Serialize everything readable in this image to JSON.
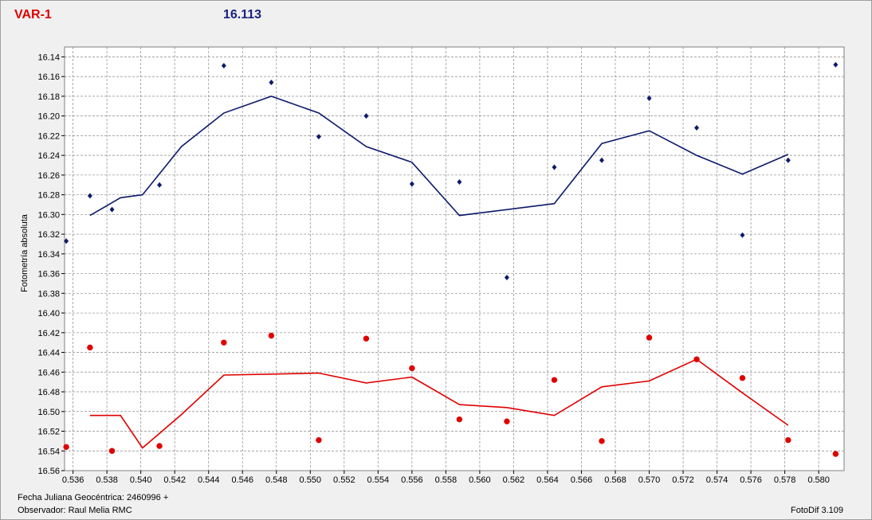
{
  "header": {
    "variable": "VAR-1",
    "magnitude": "16.113"
  },
  "footer": {
    "jd_label": "Fecha Juliana Geocéntrica: 2460996 +",
    "observer": "Observador: Raul Melia RMC",
    "software": "FotoDif 3.109"
  },
  "colors": {
    "blue_series": "#0d1a6b",
    "red_series": "#e00000",
    "grid": "#888888",
    "plot_bg": "#ffffff"
  },
  "chart_data": {
    "type": "scatter",
    "ylabel": "Fotometría absoluta",
    "xlim": [
      0.5355,
      0.5815
    ],
    "ylim": [
      16.13,
      16.56
    ],
    "y_inverted": true,
    "grid": true,
    "x_ticks": [
      0.536,
      0.538,
      0.54,
      0.542,
      0.544,
      0.546,
      0.548,
      0.55,
      0.552,
      0.554,
      0.556,
      0.558,
      0.56,
      0.562,
      0.564,
      0.566,
      0.568,
      0.57,
      0.572,
      0.574,
      0.576,
      0.578,
      0.58
    ],
    "y_ticks": [
      16.14,
      16.16,
      16.18,
      16.2,
      16.22,
      16.24,
      16.26,
      16.28,
      16.3,
      16.32,
      16.34,
      16.36,
      16.38,
      16.4,
      16.42,
      16.44,
      16.46,
      16.48,
      16.5,
      16.52,
      16.54,
      16.56
    ],
    "series": [
      {
        "color": "#0d1a6b",
        "marker": "diamond",
        "points": [
          [
            0.5356,
            16.327
          ],
          [
            0.537,
            16.281
          ],
          [
            0.5383,
            16.295
          ],
          [
            0.5411,
            16.27
          ],
          [
            0.5449,
            16.149
          ],
          [
            0.5477,
            16.166
          ],
          [
            0.5505,
            16.221
          ],
          [
            0.5533,
            16.2
          ],
          [
            0.556,
            16.269
          ],
          [
            0.5588,
            16.267
          ],
          [
            0.5616,
            16.364
          ],
          [
            0.5644,
            16.252
          ],
          [
            0.5672,
            16.245
          ],
          [
            0.57,
            16.182
          ],
          [
            0.5728,
            16.212
          ],
          [
            0.5755,
            16.321
          ],
          [
            0.5782,
            16.245
          ],
          [
            0.581,
            16.148
          ]
        ],
        "line": [
          [
            0.537,
            16.301
          ],
          [
            0.5388,
            16.283
          ],
          [
            0.5401,
            16.28
          ],
          [
            0.5424,
            16.231
          ],
          [
            0.5449,
            16.197
          ],
          [
            0.5477,
            16.18
          ],
          [
            0.5505,
            16.197
          ],
          [
            0.5533,
            16.231
          ],
          [
            0.556,
            16.247
          ],
          [
            0.5588,
            16.301
          ],
          [
            0.5644,
            16.289
          ],
          [
            0.5672,
            16.228
          ],
          [
            0.57,
            16.215
          ],
          [
            0.5728,
            16.24
          ],
          [
            0.5755,
            16.259
          ],
          [
            0.5782,
            16.239
          ]
        ]
      },
      {
        "color": "#e00000",
        "marker": "circle",
        "points": [
          [
            0.5356,
            16.536
          ],
          [
            0.537,
            16.435
          ],
          [
            0.5383,
            16.54
          ],
          [
            0.5411,
            16.535
          ],
          [
            0.5449,
            16.43
          ],
          [
            0.5477,
            16.423
          ],
          [
            0.5505,
            16.529
          ],
          [
            0.5533,
            16.426
          ],
          [
            0.556,
            16.456
          ],
          [
            0.5588,
            16.508
          ],
          [
            0.5616,
            16.51
          ],
          [
            0.5644,
            16.468
          ],
          [
            0.5672,
            16.53
          ],
          [
            0.57,
            16.425
          ],
          [
            0.5728,
            16.447
          ],
          [
            0.5755,
            16.466
          ],
          [
            0.5782,
            16.529
          ],
          [
            0.581,
            16.543
          ]
        ],
        "line": [
          [
            0.537,
            16.504
          ],
          [
            0.5388,
            16.504
          ],
          [
            0.5401,
            16.537
          ],
          [
            0.5424,
            16.503
          ],
          [
            0.5449,
            16.463
          ],
          [
            0.5477,
            16.462
          ],
          [
            0.5505,
            16.461
          ],
          [
            0.5533,
            16.471
          ],
          [
            0.556,
            16.465
          ],
          [
            0.5588,
            16.493
          ],
          [
            0.5616,
            16.496
          ],
          [
            0.5644,
            16.504
          ],
          [
            0.5672,
            16.475
          ],
          [
            0.57,
            16.469
          ],
          [
            0.5728,
            16.447
          ],
          [
            0.5755,
            16.481
          ],
          [
            0.5782,
            16.514
          ]
        ]
      }
    ]
  }
}
